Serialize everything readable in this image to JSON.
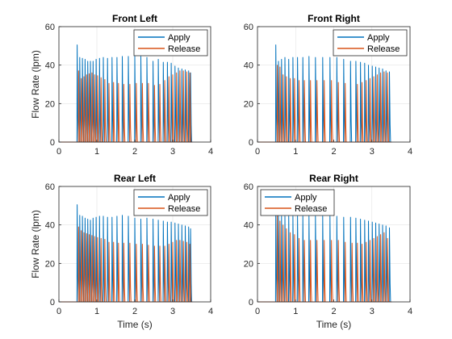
{
  "figure": {
    "colors": {
      "apply": "#0072BD",
      "release": "#D95319",
      "axis": "#262626",
      "grid": "#e3e3e3"
    }
  },
  "chart_data": [
    {
      "type": "line",
      "title": "Front Left",
      "xlabel": "",
      "ylabel": "Flow Rate (lpm)",
      "xlim": [
        0,
        4
      ],
      "ylim": [
        0,
        60
      ],
      "xticks": [
        0,
        1,
        2,
        3,
        4
      ],
      "yticks": [
        0,
        20,
        40,
        60
      ],
      "grid": true,
      "legend": "top-right",
      "series": [
        {
          "name": "Apply",
          "x": [
            0.48,
            0.55,
            0.62,
            0.69,
            0.76,
            0.83,
            0.9,
            0.98,
            1.07,
            1.17,
            1.28,
            1.4,
            1.53,
            1.67,
            1.83,
            2.0,
            2.16,
            2.32,
            2.48,
            2.62,
            2.75,
            2.86,
            2.96,
            3.06,
            3.15,
            3.24,
            3.33,
            3.42,
            3.47
          ],
          "peaks": [
            50.5,
            44,
            43.5,
            43,
            42,
            42,
            42,
            43,
            43.5,
            44,
            43.5,
            44,
            44,
            44.5,
            44.5,
            44.5,
            44.5,
            44,
            42,
            43,
            41.5,
            41.5,
            41,
            39.5,
            38.5,
            38,
            37.5,
            37,
            36
          ],
          "end": 3.52
        },
        {
          "name": "Release",
          "x": [
            0.52,
            0.59,
            0.66,
            0.73,
            0.8,
            0.87,
            0.94,
            1.02,
            1.11,
            1.21,
            1.32,
            1.44,
            1.57,
            1.71,
            1.87,
            2.04,
            2.2,
            2.36,
            2.52,
            2.66,
            2.79,
            2.9,
            3.0,
            3.1,
            3.19,
            3.28,
            3.37,
            3.45
          ],
          "peaks": [
            37,
            33,
            34,
            35,
            35.5,
            36,
            35,
            34.5,
            33.5,
            32.5,
            30.5,
            31,
            30.5,
            30,
            30,
            30.5,
            30.5,
            30.5,
            29.5,
            30,
            32,
            34,
            35,
            36,
            37,
            37,
            36.5,
            36
          ],
          "end": 3.52
        }
      ]
    },
    {
      "type": "line",
      "title": "Front Right",
      "xlabel": "",
      "ylabel": "",
      "xlim": [
        0,
        4
      ],
      "ylim": [
        0,
        60
      ],
      "xticks": [
        0,
        1,
        2,
        3,
        4
      ],
      "yticks": [
        0,
        20,
        40,
        60
      ],
      "grid": true,
      "legend": "top-right",
      "series": [
        {
          "name": "Apply",
          "x": [
            0.48,
            0.55,
            0.63,
            0.72,
            0.82,
            0.93,
            1.05,
            1.19,
            1.35,
            1.52,
            1.71,
            1.9,
            2.08,
            2.26,
            2.44,
            2.58,
            2.7,
            2.81,
            2.91,
            3.01,
            3.1,
            3.19,
            3.28,
            3.37,
            3.46
          ],
          "peaks": [
            50.5,
            42,
            43,
            44,
            43,
            44,
            44,
            44,
            44.5,
            44,
            44,
            44,
            44,
            43,
            42,
            42,
            41.5,
            41,
            40,
            39.5,
            39,
            38.5,
            38,
            37,
            36.5
          ],
          "end": 3.52
        },
        {
          "name": "Release",
          "x": [
            0.52,
            0.59,
            0.67,
            0.76,
            0.86,
            0.97,
            1.09,
            1.23,
            1.39,
            1.56,
            1.75,
            1.94,
            2.12,
            2.3,
            2.62,
            2.74,
            2.85,
            2.95,
            3.05,
            3.14,
            3.23,
            3.32,
            3.41
          ],
          "peaks": [
            40,
            39,
            35,
            34,
            33,
            33,
            32,
            32,
            32,
            32,
            32,
            32,
            31,
            30.5,
            30,
            31,
            32,
            33,
            34,
            35,
            36,
            36.5,
            36
          ],
          "end": 3.52
        }
      ]
    },
    {
      "type": "line",
      "title": "Rear Left",
      "xlabel": "Time (s)",
      "ylabel": "Flow Rate (lpm)",
      "xlim": [
        0,
        4
      ],
      "ylim": [
        0,
        60
      ],
      "xticks": [
        0,
        1,
        2,
        3,
        4
      ],
      "yticks": [
        0,
        20,
        40,
        60
      ],
      "grid": true,
      "legend": "top-right",
      "series": [
        {
          "name": "Apply",
          "x": [
            0.48,
            0.55,
            0.62,
            0.69,
            0.76,
            0.83,
            0.9,
            0.98,
            1.07,
            1.17,
            1.28,
            1.4,
            1.53,
            1.67,
            1.83,
            2.0,
            2.16,
            2.32,
            2.48,
            2.62,
            2.75,
            2.86,
            2.96,
            3.06,
            3.15,
            3.24,
            3.33,
            3.42,
            3.47
          ],
          "peaks": [
            50.5,
            45,
            44.5,
            43.5,
            43,
            42.5,
            43.5,
            44,
            44.5,
            44.5,
            44,
            44,
            44.5,
            45,
            44.5,
            43.5,
            43,
            43.5,
            43,
            42.5,
            42,
            41.5,
            41.5,
            41,
            40.5,
            40,
            39.5,
            39,
            38
          ],
          "end": 3.52
        },
        {
          "name": "Release",
          "x": [
            0.52,
            0.59,
            0.66,
            0.73,
            0.8,
            0.87,
            0.94,
            1.02,
            1.11,
            1.21,
            1.32,
            1.44,
            1.57,
            1.71,
            1.87,
            2.04,
            2.2,
            2.36,
            2.52,
            2.66,
            2.79,
            2.9,
            3.0,
            3.1,
            3.19,
            3.28,
            3.37,
            3.45
          ],
          "peaks": [
            39,
            37,
            36,
            35.5,
            35,
            34.5,
            34,
            33.5,
            33,
            32.5,
            31,
            31,
            30.5,
            30.5,
            30.5,
            30,
            30,
            29.5,
            29,
            29,
            29,
            30,
            31,
            32,
            32,
            31.5,
            31,
            30
          ],
          "end": 3.52
        }
      ]
    },
    {
      "type": "line",
      "title": "Rear Right",
      "xlabel": "Time (s)",
      "ylabel": "",
      "xlim": [
        0,
        4
      ],
      "ylim": [
        0,
        60
      ],
      "xticks": [
        0,
        1,
        2,
        3,
        4
      ],
      "yticks": [
        0,
        20,
        40,
        60
      ],
      "grid": true,
      "legend": "top-left",
      "series": [
        {
          "name": "Apply",
          "x": [
            0.48,
            0.55,
            0.63,
            0.72,
            0.82,
            0.93,
            1.05,
            1.19,
            1.35,
            1.52,
            1.71,
            1.9,
            2.08,
            2.26,
            2.44,
            2.58,
            2.7,
            2.81,
            2.91,
            3.01,
            3.1,
            3.19,
            3.28,
            3.37,
            3.46
          ],
          "peaks": [
            50.5,
            45,
            44.5,
            44.5,
            44.5,
            44.5,
            44.5,
            44.5,
            44.5,
            44.5,
            44.5,
            44.5,
            44.5,
            44,
            44,
            43.5,
            43,
            42.5,
            42,
            41.5,
            41,
            40.5,
            40,
            39.5,
            38.5
          ],
          "end": 3.52
        },
        {
          "name": "Release",
          "x": [
            0.52,
            0.59,
            0.67,
            0.76,
            0.86,
            0.97,
            1.09,
            1.23,
            1.39,
            1.56,
            1.75,
            1.94,
            2.12,
            2.3,
            2.48,
            2.62,
            2.74,
            2.85,
            2.95,
            3.05,
            3.14,
            3.23,
            3.32,
            3.41
          ],
          "peaks": [
            45,
            42,
            40,
            38,
            36,
            35,
            33,
            32,
            32,
            32,
            32,
            32,
            32,
            31,
            30.5,
            30.5,
            30,
            31,
            32,
            33,
            34,
            35,
            36,
            33
          ],
          "end": 3.52
        }
      ]
    }
  ]
}
